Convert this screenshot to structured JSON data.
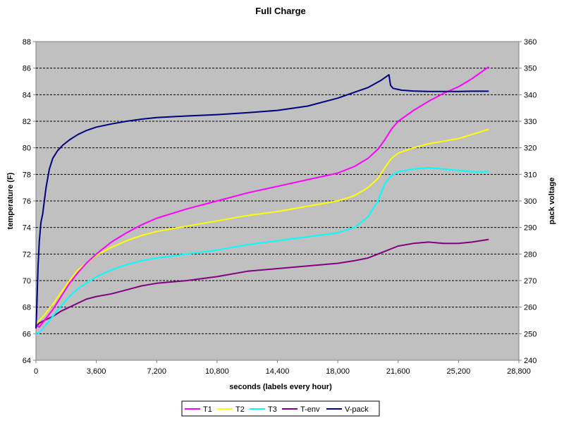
{
  "chart_data": {
    "type": "line",
    "title": "Full Charge",
    "xlabel": "seconds (labels every hour)",
    "ylabel": "temperature (F)",
    "y2label": "pack voltage",
    "xlim": [
      0,
      28800
    ],
    "ylim": [
      64,
      88
    ],
    "y2lim": [
      240,
      360
    ],
    "x_ticks": [
      0,
      3600,
      7200,
      10800,
      14400,
      18000,
      21600,
      25200,
      28800
    ],
    "x_tick_labels": [
      "0",
      "3,600",
      "7,200",
      "10,800",
      "14,400",
      "18,000",
      "21,600",
      "25,200",
      "28,800"
    ],
    "y_ticks": [
      64,
      66,
      68,
      70,
      72,
      74,
      76,
      78,
      80,
      82,
      84,
      86,
      88
    ],
    "y2_ticks": [
      240,
      250,
      260,
      270,
      280,
      290,
      300,
      310,
      320,
      330,
      340,
      350,
      360
    ],
    "grid": "horizontal dashed",
    "background_color": "#c0c0c0",
    "legend_position": "bottom",
    "series": [
      {
        "name": "T1",
        "color": "#ff00ff",
        "axis": "left",
        "x": [
          0,
          200,
          500,
          1000,
          1500,
          2000,
          2500,
          3000,
          3600,
          4500,
          5400,
          6300,
          7200,
          9000,
          10800,
          12600,
          14400,
          16200,
          18000,
          19000,
          19800,
          20400,
          20800,
          21200,
          21600,
          22500,
          23400,
          24300,
          25200,
          26000,
          27000
        ],
        "y": [
          66.6,
          66.5,
          67.0,
          67.8,
          68.8,
          69.8,
          70.6,
          71.3,
          72.0,
          72.9,
          73.6,
          74.2,
          74.7,
          75.4,
          76.0,
          76.6,
          77.1,
          77.6,
          78.1,
          78.6,
          79.2,
          79.9,
          80.6,
          81.4,
          82.0,
          82.8,
          83.5,
          84.1,
          84.6,
          85.2,
          86.1
        ]
      },
      {
        "name": "T2",
        "color": "#ffff00",
        "axis": "left",
        "x": [
          0,
          200,
          500,
          1000,
          1500,
          2000,
          2500,
          3000,
          3600,
          4500,
          5400,
          6300,
          7200,
          9000,
          10800,
          12600,
          14400,
          16200,
          18000,
          19000,
          19800,
          20400,
          20800,
          21200,
          21600,
          22500,
          23400,
          24300,
          25200,
          26000,
          27000
        ],
        "y": [
          66.8,
          67.0,
          67.4,
          68.2,
          69.1,
          70.0,
          70.8,
          71.3,
          71.9,
          72.5,
          73.0,
          73.4,
          73.7,
          74.1,
          74.5,
          74.9,
          75.2,
          75.6,
          76.0,
          76.4,
          77.0,
          77.7,
          78.5,
          79.2,
          79.6,
          80.0,
          80.3,
          80.5,
          80.7,
          81.0,
          81.4
        ]
      },
      {
        "name": "T3",
        "color": "#00ffff",
        "axis": "left",
        "x": [
          0,
          200,
          500,
          1000,
          1500,
          2000,
          2500,
          3000,
          3600,
          4500,
          5400,
          6300,
          7200,
          9000,
          10800,
          12600,
          14400,
          16200,
          18000,
          19000,
          19800,
          20400,
          20800,
          21200,
          21600,
          22500,
          23400,
          24300,
          25200,
          26000,
          27000
        ],
        "y": [
          66.0,
          66.1,
          66.5,
          67.3,
          68.1,
          68.8,
          69.4,
          69.8,
          70.3,
          70.8,
          71.2,
          71.5,
          71.7,
          72.0,
          72.3,
          72.7,
          73.0,
          73.3,
          73.6,
          74.0,
          74.8,
          76.0,
          77.3,
          77.9,
          78.2,
          78.4,
          78.5,
          78.4,
          78.3,
          78.2,
          78.2
        ]
      },
      {
        "name": "T-env",
        "color": "#800080",
        "axis": "left",
        "x": [
          0,
          200,
          500,
          1000,
          1500,
          2000,
          2500,
          3000,
          3600,
          4500,
          5400,
          6300,
          7200,
          8100,
          9000,
          10800,
          12600,
          14400,
          16200,
          18000,
          19000,
          19800,
          20400,
          20800,
          21600,
          22500,
          23400,
          24300,
          25200,
          26000,
          27000
        ],
        "y": [
          66.5,
          66.8,
          67.0,
          67.3,
          67.7,
          68.0,
          68.3,
          68.6,
          68.8,
          69.0,
          69.3,
          69.6,
          69.8,
          69.9,
          70.0,
          70.3,
          70.7,
          70.9,
          71.1,
          71.3,
          71.5,
          71.7,
          72.0,
          72.2,
          72.6,
          72.8,
          72.9,
          72.8,
          72.8,
          72.9,
          73.1
        ]
      },
      {
        "name": "V-pack",
        "color": "#000080",
        "axis": "right",
        "x": [
          0,
          50,
          120,
          200,
          300,
          400,
          500,
          600,
          800,
          1000,
          1300,
          1600,
          2000,
          2500,
          3000,
          3600,
          4500,
          5400,
          6300,
          7200,
          9000,
          10800,
          12600,
          14400,
          16200,
          18000,
          19800,
          20600,
          21050,
          21150,
          21300,
          21800,
          22500,
          23400,
          24300,
          25200,
          26000,
          27000
        ],
        "y": [
          252,
          260,
          275,
          285,
          292,
          295,
          300,
          305,
          312,
          316,
          319,
          321,
          323,
          325,
          326.5,
          327.8,
          329.0,
          330.0,
          330.8,
          331.4,
          332.0,
          332.5,
          333.2,
          334.1,
          335.7,
          338.7,
          342.7,
          345.5,
          347.5,
          343.5,
          342.4,
          341.7,
          341.4,
          341.2,
          341.2,
          341.2,
          341.3,
          341.3
        ]
      }
    ]
  }
}
